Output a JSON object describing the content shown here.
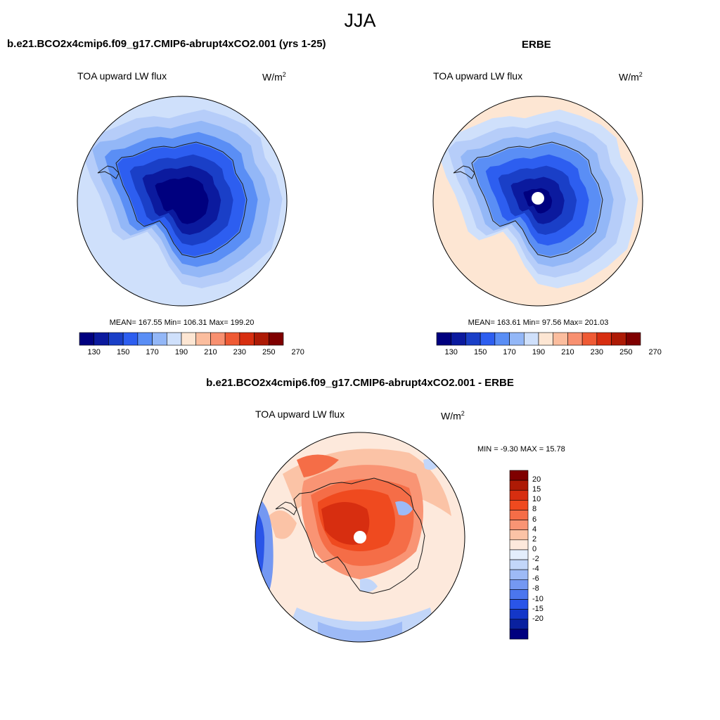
{
  "season": "JJA",
  "panels": {
    "model": {
      "case_title": "b.e21.BCO2x4cmip6.f09_g17.CMIP6-abrupt4xCO2.001 (yrs 1-25)",
      "field_label": "TOA upward LW flux",
      "units_base": "W/m",
      "units_exp": "2",
      "stats_text": "MEAN= 167.55  Min= 106.31  Max= 199.20",
      "mean": 167.55,
      "min": 106.31,
      "max": 199.2
    },
    "obs": {
      "case_title": "ERBE",
      "field_label": "TOA upward LW flux",
      "units_base": "W/m",
      "units_exp": "2",
      "stats_text": "MEAN= 163.61  Min=  97.56  Max= 201.03",
      "mean": 163.61,
      "min": 97.56,
      "max": 201.03
    },
    "diff": {
      "case_title": "b.e21.BCO2x4cmip6.f09_g17.CMIP6-abrupt4xCO2.001 - ERBE",
      "field_label": "TOA upward LW flux",
      "units_base": "W/m",
      "units_exp": "2",
      "stats_text": "MIN =  -9.30 MAX =  15.78",
      "min": -9.3,
      "max": 15.78
    }
  },
  "abs_colorbar": {
    "orientation": "horizontal",
    "colors": [
      "#00007f",
      "#0b1a9e",
      "#1a3fc7",
      "#2d5ef0",
      "#5a8ef5",
      "#93b7f7",
      "#cfe0fb",
      "#fde6d3",
      "#fbbd9e",
      "#f89070",
      "#ef5a34",
      "#d72e10",
      "#ad1a05",
      "#7f0000"
    ],
    "tick_labels": [
      "130",
      "150",
      "170",
      "190",
      "210",
      "230",
      "250",
      "270"
    ]
  },
  "diff_colorbar": {
    "orientation": "vertical",
    "colors": [
      "#7f0000",
      "#ad1a05",
      "#d72e10",
      "#ef4a1f",
      "#f56d47",
      "#f99474",
      "#fbc3a6",
      "#fde9dc",
      "#e3eefc",
      "#c2d6f9",
      "#9dbaf6",
      "#7498f2",
      "#4b76ee",
      "#2a55e8",
      "#1437c8",
      "#0a219f",
      "#00007f"
    ],
    "tick_labels": [
      "20",
      "15",
      "10",
      "8",
      "6",
      "4",
      "2",
      "0",
      "-2",
      "-4",
      "-6",
      "-8",
      "-10",
      "-15",
      "-20"
    ]
  },
  "map_colors": {
    "model_rings": [
      "#cfe0fb",
      "#b6cdf9",
      "#93b7f7",
      "#5a8ef5",
      "#2d5ef0",
      "#1a3fc7",
      "#0b1a9e",
      "#00007f"
    ],
    "obs_rings": [
      "#fde6d3",
      "#cfe0fb",
      "#b6cdf9",
      "#93b7f7",
      "#5a8ef5",
      "#2d5ef0",
      "#1a3fc7",
      "#0b1a9e",
      "#00007f"
    ],
    "coast": "#1a1a1a",
    "pole_mask": "#ffffff"
  }
}
